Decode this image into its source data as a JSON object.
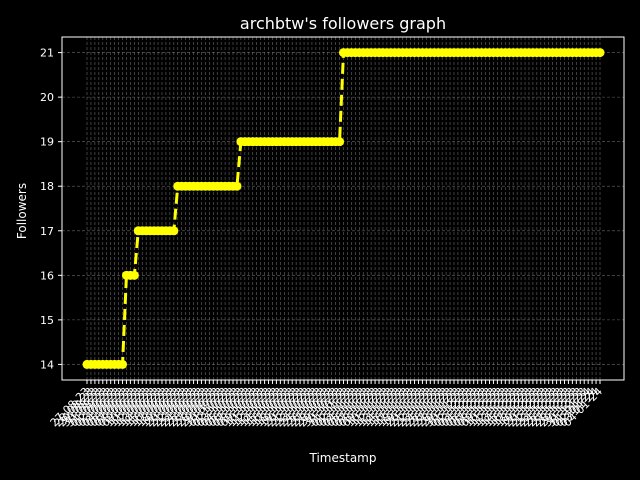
{
  "chart_data": {
    "type": "line",
    "title": "archbtw's followers graph",
    "xlabel": "Timestamp",
    "ylabel": "Followers",
    "ylim": [
      13.65,
      21.35
    ],
    "yticks": [
      14,
      15,
      16,
      17,
      18,
      19,
      20,
      21
    ],
    "grid": true,
    "line_color": "#ffff00",
    "line_style": "dashed",
    "marker": "circle",
    "background": "#000000",
    "foreground": "#ffffff",
    "points": [
      {
        "x": "27-08-23",
        "y": 14
      },
      {
        "x": "28-08-23",
        "y": 14
      },
      {
        "x": "29-08-23",
        "y": 14
      },
      {
        "x": "30-08-23",
        "y": 14
      },
      {
        "x": "31-08-23",
        "y": 14
      },
      {
        "x": "01-09-23",
        "y": 14
      },
      {
        "x": "02-09-23",
        "y": 14
      },
      {
        "x": "03-09-23",
        "y": 14
      },
      {
        "x": "04-09-23",
        "y": 14
      },
      {
        "x": "05-09-23",
        "y": 14
      },
      {
        "x": "06-09-23",
        "y": 16
      },
      {
        "x": "07-09-23",
        "y": 16
      },
      {
        "x": "08-09-23",
        "y": 16
      },
      {
        "x": "09-09-23",
        "y": 17
      },
      {
        "x": "10-09-23",
        "y": 17
      },
      {
        "x": "11-09-23",
        "y": 17
      },
      {
        "x": "12-09-23",
        "y": 17
      },
      {
        "x": "13-09-23",
        "y": 17
      },
      {
        "x": "14-09-23",
        "y": 17
      },
      {
        "x": "15-09-23",
        "y": 17
      },
      {
        "x": "16-09-23",
        "y": 17
      },
      {
        "x": "17-09-23",
        "y": 17
      },
      {
        "x": "18-09-23",
        "y": 17
      },
      {
        "x": "19-09-23",
        "y": 18
      },
      {
        "x": "20-09-23",
        "y": 18
      },
      {
        "x": "21-09-23",
        "y": 18
      },
      {
        "x": "22-09-23",
        "y": 18
      },
      {
        "x": "23-09-23",
        "y": 18
      },
      {
        "x": "24-09-23",
        "y": 18
      },
      {
        "x": "25-09-23",
        "y": 18
      },
      {
        "x": "26-09-23",
        "y": 18
      },
      {
        "x": "27-09-23",
        "y": 18
      },
      {
        "x": "28-09-23",
        "y": 18
      },
      {
        "x": "29-09-23",
        "y": 18
      },
      {
        "x": "30-09-23",
        "y": 18
      },
      {
        "x": "01-10-23",
        "y": 18
      },
      {
        "x": "02-10-23",
        "y": 18
      },
      {
        "x": "03-10-23",
        "y": 18
      },
      {
        "x": "04-10-23",
        "y": 18
      },
      {
        "x": "05-10-23",
        "y": 19
      },
      {
        "x": "06-10-23",
        "y": 19
      },
      {
        "x": "07-10-23",
        "y": 19
      },
      {
        "x": "08-10-23",
        "y": 19
      },
      {
        "x": "09-10-23",
        "y": 19
      },
      {
        "x": "10-10-23",
        "y": 19
      },
      {
        "x": "11-10-23",
        "y": 19
      },
      {
        "x": "12-10-23",
        "y": 19
      },
      {
        "x": "13-10-23",
        "y": 19
      },
      {
        "x": "14-10-23",
        "y": 19
      },
      {
        "x": "15-10-23",
        "y": 19
      },
      {
        "x": "16-10-23",
        "y": 19
      },
      {
        "x": "17-10-23",
        "y": 19
      },
      {
        "x": "18-10-23",
        "y": 19
      },
      {
        "x": "19-10-23",
        "y": 19
      },
      {
        "x": "20-10-23",
        "y": 19
      },
      {
        "x": "21-10-23",
        "y": 19
      },
      {
        "x": "22-10-23",
        "y": 19
      },
      {
        "x": "23-10-23",
        "y": 19
      },
      {
        "x": "24-10-23",
        "y": 19
      },
      {
        "x": "25-10-23",
        "y": 19
      },
      {
        "x": "26-10-23",
        "y": 19
      },
      {
        "x": "27-10-23",
        "y": 19
      },
      {
        "x": "28-10-23",
        "y": 19
      },
      {
        "x": "29-10-23",
        "y": 19
      },
      {
        "x": "30-10-23",
        "y": 19
      },
      {
        "x": "31-10-23",
        "y": 21
      },
      {
        "x": "01-11-23",
        "y": 21
      },
      {
        "x": "02-11-23",
        "y": 21
      },
      {
        "x": "03-11-23",
        "y": 21
      },
      {
        "x": "04-11-23",
        "y": 21
      },
      {
        "x": "05-11-23",
        "y": 21
      },
      {
        "x": "06-11-23",
        "y": 21
      },
      {
        "x": "07-11-23",
        "y": 21
      },
      {
        "x": "08-11-23",
        "y": 21
      },
      {
        "x": "09-11-23",
        "y": 21
      },
      {
        "x": "10-11-23",
        "y": 21
      },
      {
        "x": "11-11-23",
        "y": 21
      },
      {
        "x": "12-11-23",
        "y": 21
      },
      {
        "x": "13-11-23",
        "y": 21
      },
      {
        "x": "14-11-23",
        "y": 21
      },
      {
        "x": "15-11-23",
        "y": 21
      },
      {
        "x": "16-11-23",
        "y": 21
      },
      {
        "x": "17-11-23",
        "y": 21
      },
      {
        "x": "18-11-23",
        "y": 21
      },
      {
        "x": "19-11-23",
        "y": 21
      },
      {
        "x": "20-11-23",
        "y": 21
      },
      {
        "x": "21-11-23",
        "y": 21
      },
      {
        "x": "22-11-23",
        "y": 21
      },
      {
        "x": "23-11-23",
        "y": 21
      },
      {
        "x": "24-11-23",
        "y": 21
      },
      {
        "x": "25-11-23",
        "y": 21
      },
      {
        "x": "26-11-23",
        "y": 21
      },
      {
        "x": "27-11-23",
        "y": 21
      },
      {
        "x": "28-11-23",
        "y": 21
      },
      {
        "x": "29-11-23",
        "y": 21
      },
      {
        "x": "30-11-23",
        "y": 21
      },
      {
        "x": "01-12-23",
        "y": 21
      },
      {
        "x": "02-12-23",
        "y": 21
      },
      {
        "x": "03-12-23",
        "y": 21
      },
      {
        "x": "04-12-23",
        "y": 21
      },
      {
        "x": "05-12-23",
        "y": 21
      },
      {
        "x": "06-12-23",
        "y": 21
      },
      {
        "x": "07-12-23",
        "y": 21
      },
      {
        "x": "08-12-23",
        "y": 21
      },
      {
        "x": "09-12-23",
        "y": 21
      },
      {
        "x": "10-12-23",
        "y": 21
      },
      {
        "x": "11-12-23",
        "y": 21
      },
      {
        "x": "12-12-23",
        "y": 21
      },
      {
        "x": "13-12-23",
        "y": 21
      },
      {
        "x": "14-12-23",
        "y": 21
      },
      {
        "x": "15-12-23",
        "y": 21
      },
      {
        "x": "16-12-23",
        "y": 21
      },
      {
        "x": "17-12-23",
        "y": 21
      },
      {
        "x": "18-12-23",
        "y": 21
      },
      {
        "x": "19-12-23",
        "y": 21
      },
      {
        "x": "20-12-23",
        "y": 21
      },
      {
        "x": "21-12-23",
        "y": 21
      },
      {
        "x": "22-12-23",
        "y": 21
      },
      {
        "x": "23-12-23",
        "y": 21
      },
      {
        "x": "24-12-23",
        "y": 21
      },
      {
        "x": "25-12-23",
        "y": 21
      },
      {
        "x": "26-12-23",
        "y": 21
      },
      {
        "x": "27-12-23",
        "y": 21
      },
      {
        "x": "28-12-23",
        "y": 21
      },
      {
        "x": "29-12-23",
        "y": 21
      },
      {
        "x": "30-12-23",
        "y": 21
      },
      {
        "x": "31-12-23",
        "y": 21
      },
      {
        "x": "01-01-24",
        "y": 21
      },
      {
        "x": "02-01-24",
        "y": 21
      },
      {
        "x": "03-01-24",
        "y": 21
      },
      {
        "x": "04-01-24",
        "y": 21
      }
    ]
  }
}
